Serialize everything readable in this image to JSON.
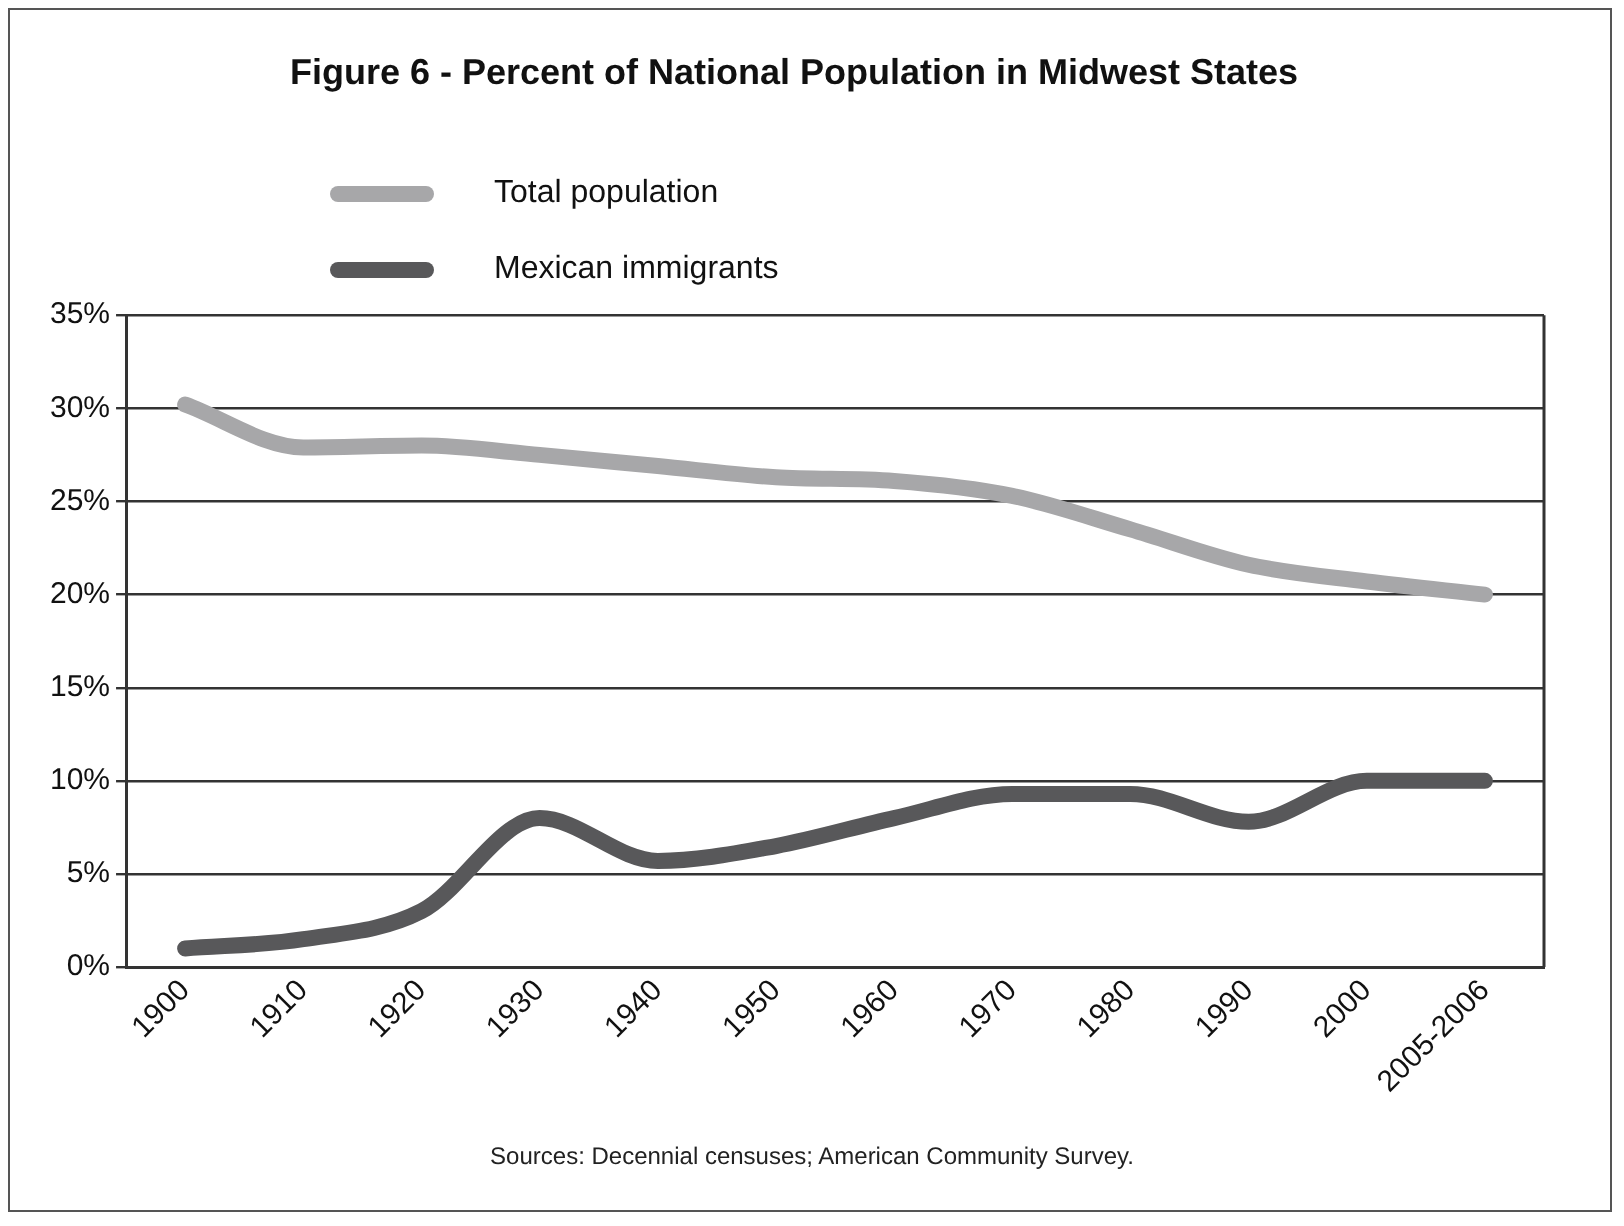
{
  "chart_data": {
    "type": "line",
    "title": "Figure 6 - Percent of National Population in Midwest States",
    "categories": [
      "1900",
      "1910",
      "1920",
      "1930",
      "1940",
      "1950",
      "1960",
      "1970",
      "1980",
      "1990",
      "2000",
      "2005-2006"
    ],
    "series": [
      {
        "name": "Total population",
        "color": "#a7a7a9",
        "values": [
          30.2,
          27.9,
          28.0,
          27.5,
          26.9,
          26.3,
          26.1,
          25.3,
          23.5,
          21.6,
          20.7,
          20.0
        ]
      },
      {
        "name": "Mexican immigrants",
        "color": "#58585a",
        "values": [
          1.0,
          1.5,
          3.0,
          8.0,
          5.7,
          6.5,
          8.0,
          9.3,
          9.3,
          7.8,
          10.0,
          10.0
        ]
      }
    ],
    "ylim": [
      0,
      35
    ],
    "yticks": [
      {
        "value": 0,
        "label": "0%"
      },
      {
        "value": 5,
        "label": "5%"
      },
      {
        "value": 10,
        "label": "10%"
      },
      {
        "value": 15,
        "label": "15%"
      },
      {
        "value": 20,
        "label": "20%"
      },
      {
        "value": 25,
        "label": "25%"
      },
      {
        "value": 30,
        "label": "30%"
      },
      {
        "value": 35,
        "label": "35%"
      }
    ],
    "grid": "y",
    "legend": "top left",
    "marker": "none",
    "line_style": "solid",
    "annotations": [
      "Sources: Decennial censuses; American Community Survey."
    ]
  }
}
